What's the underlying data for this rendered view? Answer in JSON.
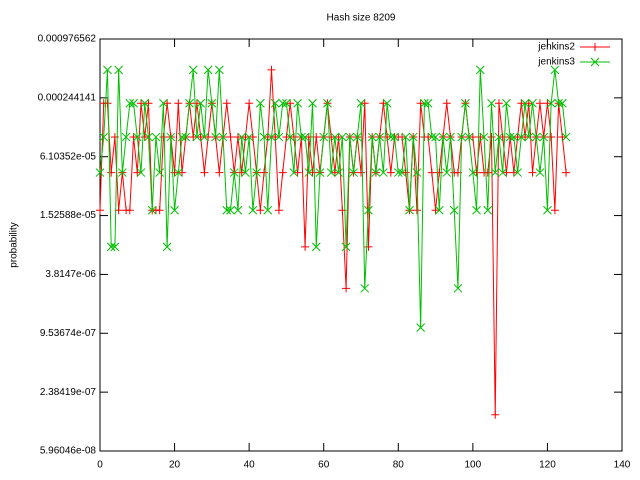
{
  "chart_data": {
    "type": "line",
    "title": "Hash size 8209",
    "ylabel": "probability",
    "x": [
      0,
      1,
      2,
      3,
      4,
      5,
      6,
      7,
      8,
      9,
      10,
      11,
      12,
      13,
      14,
      15,
      16,
      17,
      18,
      19,
      20,
      21,
      22,
      23,
      24,
      25,
      26,
      27,
      28,
      29,
      30,
      31,
      32,
      33,
      34,
      35,
      36,
      37,
      38,
      39,
      40,
      41,
      42,
      43,
      44,
      45,
      46,
      47,
      48,
      49,
      50,
      51,
      52,
      53,
      54,
      55,
      56,
      57,
      58,
      59,
      60,
      61,
      62,
      63,
      64,
      65,
      66,
      67,
      68,
      69,
      70,
      71,
      72,
      73,
      74,
      75,
      76,
      77,
      78,
      79,
      80,
      81,
      82,
      83,
      84,
      85,
      86,
      87,
      88,
      89,
      90,
      91,
      92,
      93,
      94,
      95,
      96,
      97,
      98,
      99,
      100,
      101,
      102,
      103,
      104,
      105,
      106,
      107,
      108,
      109,
      110,
      111,
      112,
      113,
      114,
      115,
      116,
      117,
      118,
      119,
      120,
      121,
      122,
      123,
      124,
      125
    ],
    "series": [
      {
        "name": "jenkins2",
        "color": "#ff0000",
        "marker": "plus",
        "values": [
          1.73e-05,
          0.000215,
          0.000215,
          4.2e-05,
          9.7e-05,
          1.73e-05,
          4.2e-05,
          1.73e-05,
          1.73e-05,
          9.7e-05,
          4.2e-05,
          0.000215,
          9.7e-05,
          0.000215,
          1.73e-05,
          1.73e-05,
          1.73e-05,
          9.7e-05,
          0.000215,
          9.7e-05,
          4.2e-05,
          0.000215,
          4.2e-05,
          9.7e-05,
          0.000215,
          9.7e-05,
          0.000215,
          9.7e-05,
          4.2e-05,
          9.7e-05,
          0.000215,
          9.7e-05,
          4.2e-05,
          9.7e-05,
          0.000215,
          9.7e-05,
          4.2e-05,
          9.7e-05,
          4.2e-05,
          9.7e-05,
          0.000215,
          9.7e-05,
          4.2e-05,
          1.73e-05,
          4.2e-05,
          9.7e-05,
          0.000472,
          9.7e-05,
          1.73e-05,
          4.2e-05,
          9.7e-05,
          0.000215,
          9.7e-05,
          4.2e-05,
          9.7e-05,
          7.3e-06,
          9.7e-05,
          4.2e-05,
          9.7e-05,
          4.2e-05,
          9.7e-05,
          0.000215,
          9.7e-05,
          4.2e-05,
          9.7e-05,
          1.73e-05,
          2.75e-06,
          9.7e-05,
          4.2e-05,
          9.7e-05,
          4.2e-05,
          0.000215,
          7.3e-06,
          9.7e-05,
          4.2e-05,
          9.7e-05,
          0.000215,
          9.7e-05,
          4.2e-05,
          9.7e-05,
          9.7e-05,
          9.7e-05,
          4.2e-05,
          1.73e-05,
          9.7e-05,
          1.73e-05,
          0.000215,
          9.7e-05,
          9.7e-05,
          4.2e-05,
          1.73e-05,
          4.2e-05,
          9.7e-05,
          0.000215,
          9.7e-05,
          4.2e-05,
          4.2e-05,
          9.7e-05,
          0.000215,
          9.7e-05,
          9.7e-05,
          4.2e-05,
          9.7e-05,
          4.2e-05,
          4.2e-05,
          9.7e-05,
          1.4e-07,
          0.000215,
          9.7e-05,
          4.2e-05,
          9.7e-05,
          4.2e-05,
          9.7e-05,
          0.000215,
          9.7e-05,
          0.000215,
          4.2e-05,
          9.7e-05,
          0.000215,
          9.7e-05,
          0.000215,
          9.7e-05,
          1.73e-05,
          0.000215,
          9.7e-05,
          4.2e-05
        ]
      },
      {
        "name": "jenkins3",
        "color": "#00c000",
        "marker": "cross",
        "values": [
          4.2e-05,
          9.7e-05,
          0.000472,
          7.3e-06,
          7.3e-06,
          0.000472,
          4.2e-05,
          9.7e-05,
          0.000215,
          0.000215,
          9.7e-05,
          4.2e-05,
          0.000215,
          9.7e-05,
          1.73e-05,
          9.7e-05,
          4.2e-05,
          0.000215,
          7.3e-06,
          9.7e-05,
          1.73e-05,
          4.2e-05,
          9.7e-05,
          9.7e-05,
          0.000215,
          0.000472,
          9.7e-05,
          0.000215,
          9.7e-05,
          0.000472,
          0.000215,
          9.7e-05,
          0.000472,
          9.7e-05,
          1.73e-05,
          1.73e-05,
          4.2e-05,
          1.73e-05,
          9.7e-05,
          4.2e-05,
          9.7e-05,
          1.73e-05,
          4.2e-05,
          0.000215,
          9.7e-05,
          1.73e-05,
          9.7e-05,
          0.000215,
          9.7e-05,
          0.000215,
          0.000215,
          9.7e-05,
          4.2e-05,
          0.000215,
          9.7e-05,
          9.7e-05,
          4.2e-05,
          0.000215,
          7.3e-06,
          4.2e-05,
          9.7e-05,
          0.000215,
          4.2e-05,
          9.7e-05,
          4.2e-05,
          9.7e-05,
          7.3e-06,
          9.7e-05,
          4.2e-05,
          9.7e-05,
          0.000215,
          2.75e-06,
          1.73e-05,
          9.7e-05,
          4.2e-05,
          9.7e-05,
          4.2e-05,
          0.000215,
          9.7e-05,
          9.7e-05,
          4.2e-05,
          4.2e-05,
          9.7e-05,
          1.73e-05,
          9.7e-05,
          4.2e-05,
          1.09e-06,
          0.000215,
          0.000215,
          9.7e-05,
          9.7e-05,
          1.73e-05,
          9.7e-05,
          4.2e-05,
          9.7e-05,
          1.73e-05,
          2.75e-06,
          9.7e-05,
          0.000215,
          9.7e-05,
          4.2e-05,
          1.73e-05,
          0.000472,
          9.7e-05,
          1.73e-05,
          0.000215,
          4.2e-05,
          9.7e-05,
          4.2e-05,
          0.000215,
          9.7e-05,
          9.7e-05,
          4.2e-05,
          9.7e-05,
          0.000215,
          9.7e-05,
          0.000215,
          9.7e-05,
          4.2e-05,
          9.7e-05,
          1.73e-05,
          0.000215,
          0.000472,
          0.000215,
          0.000215,
          9.7e-05
        ]
      }
    ],
    "xlim": [
      0,
      140
    ],
    "xticks": [
      0,
      20,
      40,
      60,
      80,
      100,
      120,
      140
    ],
    "ylog": true,
    "ylim": [
      5.96046e-08,
      0.000976562
    ],
    "yticks": [
      {
        "value": 5.96046e-08,
        "label": "5.96046e-08"
      },
      {
        "value": 2.38419e-07,
        "label": "2.38419e-07"
      },
      {
        "value": 9.53674e-07,
        "label": "9.53674e-07"
      },
      {
        "value": 3.8147e-06,
        "label": "3.8147e-06"
      },
      {
        "value": 1.52588e-05,
        "label": "1.52588e-05"
      },
      {
        "value": 6.10352e-05,
        "label": "6.10352e-05"
      },
      0.000244141,
      0.000976562
    ],
    "legend": "top-right"
  }
}
